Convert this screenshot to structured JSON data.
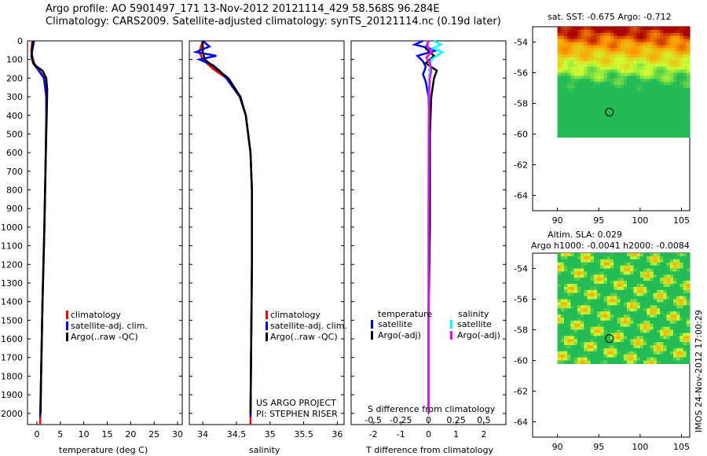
{
  "header": {
    "line1": "Argo profile: AO 5901497_171 13-Nov-2012 20121114_429 58.568S 96.284E",
    "line2": "Climatology: CARS2009. Satellite-adjusted climatology: synTS_20121114.nc (0.19d later)"
  },
  "colors": {
    "climatology": "#ff0000",
    "satellite": "#0000ff",
    "argo": "#000000",
    "salinity_satellite": "#00ffff",
    "salinity_argo": "#ff00ff",
    "map_warm_dark": "#aa0000",
    "map_warm": "#ff9900",
    "map_mid": "#ccff33",
    "map_green": "#22bb55"
  },
  "chart_data": [
    {
      "type": "line",
      "id": "temperature",
      "xlabel": "temperature (deg C)",
      "xlim": [
        -2,
        31
      ],
      "xticks": [
        0,
        5,
        10,
        15,
        20,
        25,
        30
      ],
      "ylim": [
        2060,
        0
      ],
      "yticks": [
        0,
        100,
        200,
        300,
        400,
        500,
        600,
        700,
        800,
        900,
        1000,
        1100,
        1200,
        1300,
        1400,
        1500,
        1600,
        1700,
        1800,
        1900,
        2000
      ],
      "legend": {
        "entries": [
          "climatology",
          "satellite-adj. clim.",
          "Argo(..raw -QC)"
        ],
        "placement": "bottom-center"
      },
      "series": [
        {
          "name": "climatology",
          "color": "#ff0000",
          "depth": [
            0,
            60,
            120,
            160,
            200,
            300,
            400,
            600,
            1000,
            1400,
            1800,
            2060
          ],
          "values": [
            -1.0,
            -1.2,
            -0.6,
            0.6,
            1.6,
            2.0,
            2.0,
            1.9,
            1.6,
            1.2,
            0.9,
            0.7
          ]
        },
        {
          "name": "satellite-adj. clim.",
          "color": "#0000ff",
          "depth": [
            0,
            40,
            80,
            120,
            160,
            200,
            300,
            400,
            600,
            1000,
            1400,
            1800,
            2020
          ],
          "values": [
            -0.6,
            -0.9,
            -1.2,
            -0.8,
            0.4,
            1.5,
            2.0,
            2.0,
            1.9,
            1.6,
            1.2,
            0.9,
            0.7
          ]
        },
        {
          "name": "Argo(..raw -QC)",
          "color": "#000000",
          "depth": [
            0,
            60,
            100,
            130,
            160,
            200,
            260,
            400,
            600,
            1000,
            1400,
            1800,
            2000
          ],
          "values": [
            -0.8,
            -1.1,
            -1.0,
            -0.5,
            1.2,
            2.0,
            2.2,
            2.1,
            1.9,
            1.6,
            1.2,
            0.9,
            0.8
          ]
        }
      ]
    },
    {
      "type": "line",
      "id": "salinity",
      "xlabel": "salinity",
      "xlim": [
        33.8,
        36.1
      ],
      "xticks": [
        34,
        34.5,
        35,
        35.5,
        36
      ],
      "ylim": [
        2060,
        0
      ],
      "legend": {
        "entries": [
          "climatology",
          "satellite-adj. clim.",
          "Argo(..raw -QC)"
        ],
        "placement": "bottom-center"
      },
      "annotations": [
        "US ARGO PROJECT",
        "PI: STEPHEN RISER"
      ],
      "series": [
        {
          "name": "climatology",
          "color": "#ff0000",
          "depth": [
            0,
            60,
            100,
            150,
            200,
            300,
            400,
            600,
            800,
            1200,
            1600,
            2060
          ],
          "values": [
            34.0,
            33.95,
            34.0,
            34.15,
            34.35,
            34.55,
            34.64,
            34.71,
            34.73,
            34.73,
            34.72,
            34.71
          ]
        },
        {
          "name": "satellite-adj. clim.",
          "color": "#0000ff",
          "depth": [
            0,
            30,
            60,
            80,
            100,
            130,
            160,
            200,
            300,
            400,
            600,
            800,
            1200,
            1600,
            2020
          ],
          "values": [
            34.0,
            34.1,
            33.9,
            34.2,
            33.95,
            34.15,
            34.25,
            34.35,
            34.55,
            34.64,
            34.71,
            34.73,
            34.73,
            34.72,
            34.71
          ]
        },
        {
          "name": "Argo(..raw -QC)",
          "color": "#000000",
          "depth": [
            0,
            60,
            100,
            150,
            200,
            300,
            400,
            600,
            800,
            1200,
            1600,
            2000
          ],
          "values": [
            34.0,
            34.0,
            34.03,
            34.2,
            34.38,
            34.56,
            34.64,
            34.71,
            34.73,
            34.73,
            34.72,
            34.71
          ]
        }
      ]
    },
    {
      "type": "line",
      "id": "difference",
      "xlabel": "T difference from climatology",
      "xlabel2": "S difference from climatology",
      "xlim": [
        -2.8,
        2.8
      ],
      "xticks": [
        -2,
        -1,
        0,
        1,
        2
      ],
      "xticks2": [
        -0.5,
        -0.25,
        0,
        0.25,
        0.5
      ],
      "legend_groups": [
        {
          "title": "temperature",
          "entries": [
            "satellite",
            "Argo(-adj)"
          ]
        },
        {
          "title": "salinity",
          "entries": [
            "satellite",
            "Argo(-adj)"
          ]
        }
      ],
      "series": [
        {
          "name": "temperature satellite",
          "color": "#0000ff",
          "depth": [
            0,
            20,
            50,
            80,
            110,
            140,
            180,
            220,
            300,
            500,
            1000,
            1500,
            2000
          ],
          "values": [
            -0.2,
            -0.5,
            0.3,
            -0.4,
            -0.2,
            -0.1,
            -0.2,
            -0.1,
            0.0,
            0.02,
            0.02,
            0.0,
            0.0
          ]
        },
        {
          "name": "temperature Argo(-adj)",
          "color": "#000000",
          "depth": [
            0,
            40,
            80,
            120,
            160,
            200,
            300,
            500,
            1000,
            1500,
            2000
          ],
          "values": [
            0.0,
            -0.1,
            0.2,
            -0.1,
            0.3,
            0.2,
            0.1,
            0.05,
            0.05,
            0.0,
            0.0
          ]
        },
        {
          "name": "salinity satellite",
          "color": "#00ffff",
          "depth": [
            0,
            20,
            40,
            60,
            80,
            100,
            130,
            160,
            200,
            300,
            500,
            1000,
            1500,
            2000
          ],
          "values": [
            0.2,
            0.45,
            0.15,
            0.5,
            0.3,
            0.1,
            0.05,
            0.05,
            0.02,
            0.01,
            0.0,
            0.0,
            0.0,
            0.0
          ]
        },
        {
          "name": "salinity Argo(-adj)",
          "color": "#ff00ff",
          "depth": [
            0,
            30,
            60,
            90,
            120,
            160,
            200,
            300,
            500,
            1000,
            1500,
            2000
          ],
          "values": [
            0.0,
            -0.05,
            0.1,
            -0.08,
            0.05,
            0.1,
            0.05,
            0.02,
            0.01,
            0.0,
            0.0,
            0.0
          ]
        }
      ]
    },
    {
      "type": "heatmap",
      "id": "sst-map",
      "title": "sat. SST: -0.675 Argo: -0.712",
      "xticks": [
        90,
        95,
        100,
        105
      ],
      "yticks": [
        -54,
        -56,
        -58,
        -60,
        -62,
        -64
      ],
      "xlim": [
        87,
        106
      ],
      "ylim": [
        -65,
        -53
      ],
      "data_extent": {
        "lon": [
          90,
          106
        ],
        "lat": [
          -60.2,
          -53
        ]
      },
      "marker": {
        "lon": 96.284,
        "lat": -58.568
      }
    },
    {
      "type": "heatmap",
      "id": "sla-map",
      "title": "Altim. SLA: 0.029",
      "subtitle": "Argo h1000: -0.0041 h2000: -0.0084",
      "xticks": [
        90,
        95,
        100,
        105
      ],
      "yticks": [
        -54,
        -56,
        -58,
        -60,
        -62,
        -64
      ],
      "xlim": [
        87,
        106
      ],
      "ylim": [
        -65,
        -53
      ],
      "data_extent": {
        "lon": [
          90,
          106
        ],
        "lat": [
          -60.2,
          -53
        ]
      },
      "marker": {
        "lon": 96.284,
        "lat": -58.568
      }
    }
  ],
  "footer": {
    "stamp": "IMOS 24-Nov-2012 17:00:29"
  }
}
